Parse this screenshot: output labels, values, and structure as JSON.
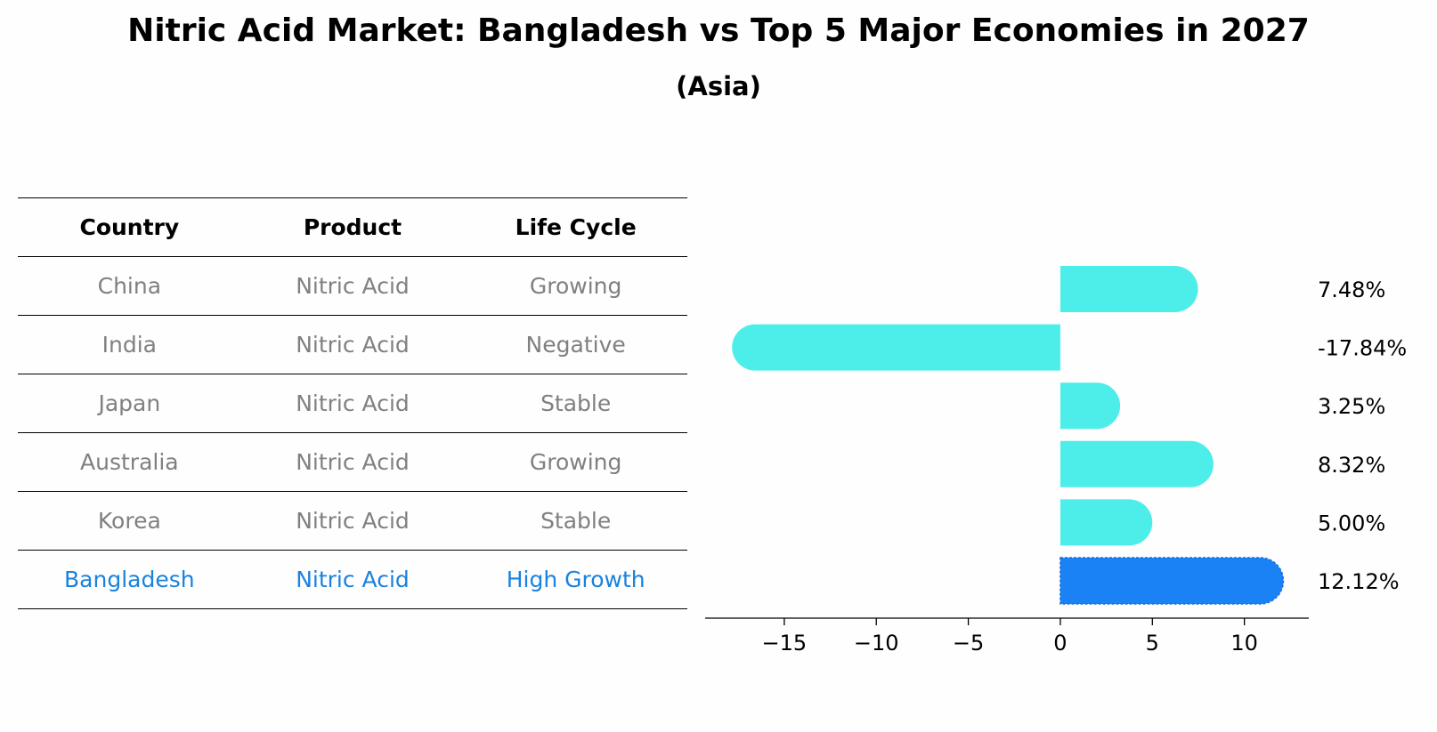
{
  "title": "Nitric Acid Market: Bangladesh vs Top 5 Major Economies in 2027",
  "subtitle": "(Asia)",
  "table": {
    "headers": [
      "Country",
      "Product",
      "Life Cycle"
    ],
    "rows": [
      {
        "country": "China",
        "product": "Nitric Acid",
        "life_cycle": "Growing"
      },
      {
        "country": "India",
        "product": "Nitric Acid",
        "life_cycle": "Negative"
      },
      {
        "country": "Japan",
        "product": "Nitric Acid",
        "life_cycle": "Stable"
      },
      {
        "country": "Australia",
        "product": "Nitric Acid",
        "life_cycle": "Growing"
      },
      {
        "country": "Korea",
        "product": "Nitric Acid",
        "life_cycle": "Stable"
      },
      {
        "country": "Bangladesh",
        "product": "Nitric Acid",
        "life_cycle": "High Growth"
      }
    ]
  },
  "chart_data": {
    "type": "bar",
    "orientation": "horizontal",
    "title": "Nitric Acid Market: Bangladesh vs Top 5 Major Economies in 2027",
    "subtitle": "(Asia)",
    "categories": [
      "China",
      "India",
      "Japan",
      "Australia",
      "Korea",
      "Bangladesh"
    ],
    "values": [
      7.48,
      -17.84,
      3.25,
      8.32,
      5.0,
      12.12
    ],
    "value_labels": [
      "7.48%",
      "-17.84%",
      "3.25%",
      "8.32%",
      "5.00%",
      "12.12%"
    ],
    "highlight": "Bangladesh",
    "xlim": [
      -19.3,
      13.5
    ],
    "xticks": [
      -15,
      -10,
      -5,
      0,
      5,
      10
    ],
    "xtick_labels": [
      "−15",
      "−10",
      "−5",
      "0",
      "5",
      "10"
    ],
    "xlabel": "",
    "ylabel": "",
    "grid": false,
    "colors": {
      "bar": "#4deeea",
      "highlight_bar": "#1a82f5",
      "table_text": "#808080",
      "table_highlight_text": "#1a82de"
    }
  }
}
